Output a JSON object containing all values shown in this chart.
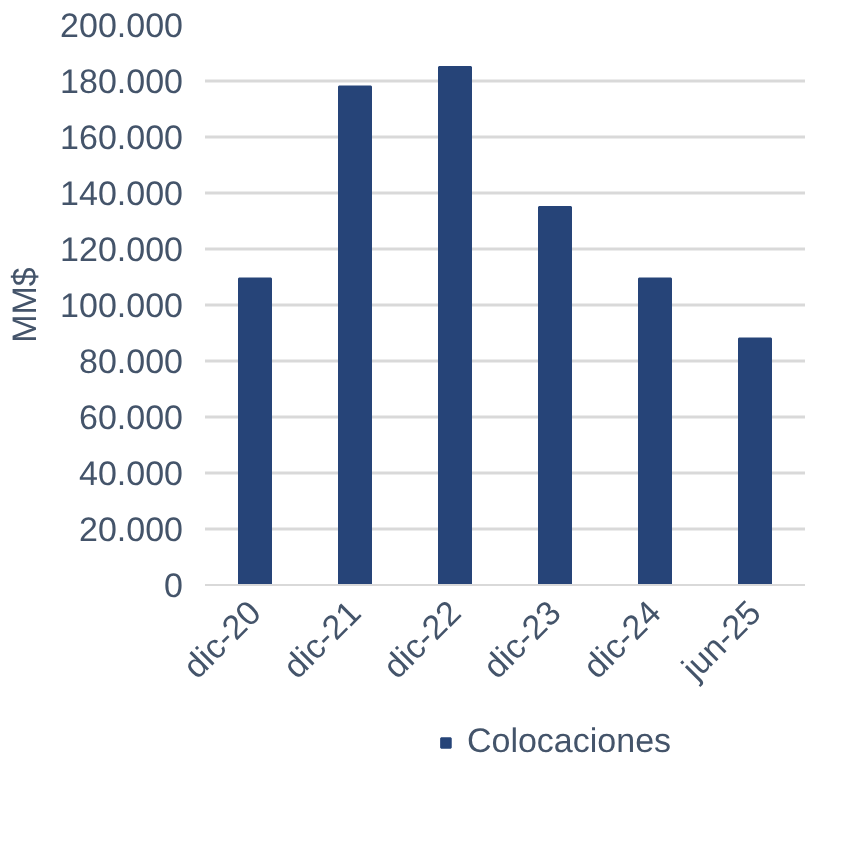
{
  "chart_data": {
    "type": "bar",
    "ylabel": "MM$",
    "categories": [
      "dic-20",
      "dic-21",
      "dic-22",
      "dic-23",
      "dic-24",
      "jun-25"
    ],
    "series": [
      {
        "name": "Colocaciones",
        "color": "#264478",
        "values": [
          109500,
          178000,
          185000,
          135000,
          109500,
          88000
        ]
      }
    ],
    "ylim": [
      0,
      200000
    ],
    "yticks": [
      {
        "value": 0,
        "label": "0"
      },
      {
        "value": 20000,
        "label": "20.000"
      },
      {
        "value": 40000,
        "label": "40.000"
      },
      {
        "value": 60000,
        "label": "60.000"
      },
      {
        "value": 80000,
        "label": "80.000"
      },
      {
        "value": 100000,
        "label": "100.000"
      },
      {
        "value": 120000,
        "label": "120.000"
      },
      {
        "value": 140000,
        "label": "140.000"
      },
      {
        "value": 160000,
        "label": "160.000"
      },
      {
        "value": 180000,
        "label": "180.000"
      },
      {
        "value": 200000,
        "label": "200.000"
      }
    ],
    "grid": "y",
    "legend": "bottom"
  }
}
